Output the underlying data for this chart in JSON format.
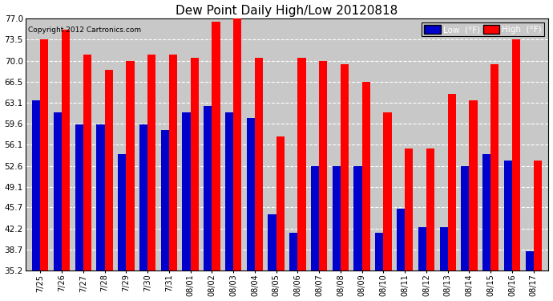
{
  "title": "Dew Point Daily High/Low 20120818",
  "copyright": "Copyright 2012 Cartronics.com",
  "dates": [
    "7/25",
    "7/26",
    "7/27",
    "7/28",
    "7/29",
    "7/30",
    "7/31",
    "08/01",
    "08/02",
    "08/03",
    "08/04",
    "08/05",
    "08/06",
    "08/07",
    "08/08",
    "08/09",
    "08/10",
    "08/11",
    "08/12",
    "08/13",
    "08/14",
    "08/15",
    "08/16",
    "08/17"
  ],
  "high": [
    73.5,
    75.2,
    71.0,
    68.5,
    70.0,
    71.0,
    71.0,
    70.5,
    76.5,
    77.5,
    70.5,
    57.5,
    70.5,
    70.0,
    69.5,
    66.5,
    61.5,
    55.5,
    55.5,
    64.5,
    63.5,
    69.5,
    73.5,
    53.5
  ],
  "low": [
    63.5,
    61.5,
    59.5,
    59.5,
    54.5,
    59.5,
    58.5,
    61.5,
    62.5,
    61.5,
    60.5,
    44.5,
    41.5,
    52.5,
    52.5,
    52.5,
    41.5,
    45.5,
    42.5,
    42.5,
    52.5,
    54.5,
    53.5,
    38.5
  ],
  "high_color": "#ff0000",
  "low_color": "#0000cc",
  "outer_bg": "#ffffff",
  "plot_bg_color": "#c8c8c8",
  "ytick_values": [
    35.2,
    38.7,
    42.2,
    45.7,
    49.1,
    52.6,
    56.1,
    59.6,
    63.1,
    66.5,
    70.0,
    73.5,
    77.0
  ],
  "ytick_labels": [
    "35.2",
    "38.7",
    "42.2",
    "45.7",
    "49.1",
    "52.6",
    "56.1",
    "59.6",
    "63.1",
    "66.5",
    "70.0",
    "73.5",
    "77.0"
  ],
  "ymin": 35.2,
  "ymax": 77.0,
  "bar_width": 0.38
}
